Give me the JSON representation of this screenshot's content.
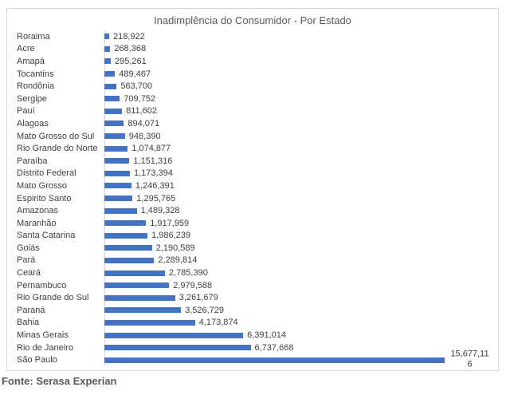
{
  "chart_data": {
    "type": "bar",
    "orientation": "horizontal",
    "title": "Inadimplência do Consumidor - Por Estado",
    "source_note": "Fonte: Serasa Experian",
    "categories": [
      "Roraima",
      "Acre",
      "Amapá",
      "Tocantins",
      "Rondônia",
      "Sergipe",
      "Pauí",
      "Alagoas",
      "Mato Grosso do Sul",
      "Rio Grande do Norte",
      "Paraíba",
      "Distrito Federal",
      "Mato Grosso",
      "Espirito Santo",
      "Amazonas",
      "Maranhão",
      "Santa Catarina",
      "Goiás",
      "Pará",
      "Ceará",
      "Pernambuco",
      "Rio Grande do Sul",
      "Paraná",
      "Bahia",
      "Minas Gerais",
      "Rio de Janeiro",
      "São Paulo"
    ],
    "values": [
      218922,
      268368,
      295261,
      489467,
      563700,
      709752,
      811602,
      894071,
      948390,
      1074877,
      1151316,
      1173394,
      1246391,
      1295765,
      1489328,
      1917959,
      1986239,
      2190589,
      2289814,
      2785390,
      2979588,
      3261679,
      3526729,
      4173874,
      6391014,
      6737668,
      15677116
    ],
    "value_labels": [
      "218,922",
      "268,368",
      "295,261",
      "489,467",
      "563,700",
      "709,752",
      "811,602",
      "894,071",
      "948,390",
      "1,074,877",
      "1,151,316",
      "1,173,394",
      "1,246,391",
      "1,295,765",
      "1,489,328",
      "1,917,959",
      "1,986,239",
      "2,190,589",
      "2,289,814",
      "2,785,390",
      "2,979,588",
      "3,261,679",
      "3,526,729",
      "4,173,874",
      "6,391,014",
      "6,737,668",
      "15,677,116"
    ],
    "wrapped_last_label": true,
    "max_value_label_lines": [
      "15,677,11",
      "6"
    ],
    "xlim": [
      0,
      15677116
    ],
    "grid": "off",
    "legend": "none",
    "colors": {
      "bar": "#4472C4",
      "chart_border": "#d9d9d9",
      "axis_line": "#d9d9d9",
      "title_text": "#595959",
      "label_text": "#404040",
      "source_text": "#595959"
    }
  }
}
